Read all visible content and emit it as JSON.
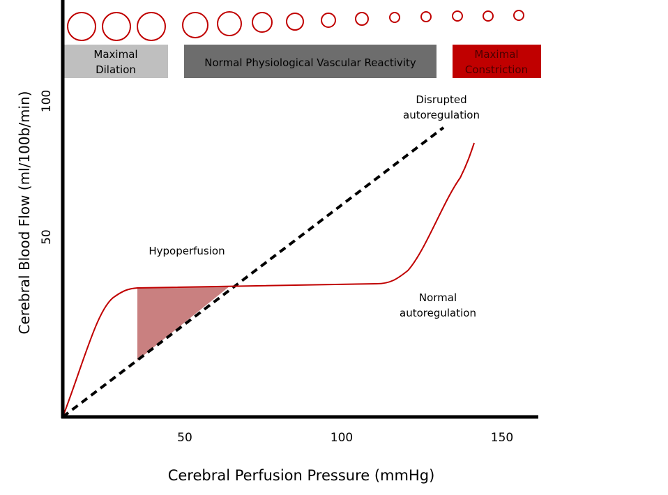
{
  "boxes": [
    {
      "lines": [
        "Maximal",
        "Dilation"
      ]
    },
    {
      "lines": [
        "Normal Physiological Vascular Reactivity"
      ]
    },
    {
      "lines": [
        "Maximal",
        "Constriction"
      ]
    }
  ],
  "annotations": [
    {
      "lines": [
        "Hypoperfusion"
      ]
    },
    {
      "lines": [
        "Disrupted",
        "autoregulation"
      ]
    },
    {
      "lines": [
        "Normal",
        "autoregulation"
      ]
    }
  ],
  "x_axis": {
    "label": "Cerebral Perfusion Pressure (mmHg)",
    "ticks": [
      "50",
      "100",
      "150"
    ]
  },
  "y_axis": {
    "label": "Cerebral Blood Flow (ml/100b/min)",
    "ticks": [
      "50",
      "100"
    ]
  }
}
